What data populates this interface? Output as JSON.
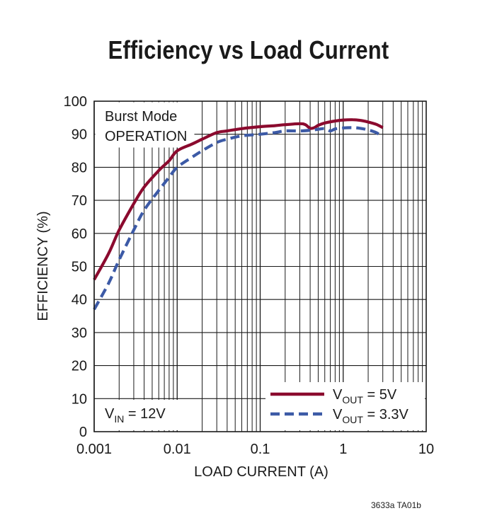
{
  "figure_id": "3633a TA01b",
  "chart_data": {
    "type": "line",
    "title": "Efficiency vs Load Current",
    "xlabel": "LOAD CURRENT (A)",
    "ylabel": "EFFICIENCY (%)",
    "xscale": "log",
    "xlim": [
      0.001,
      10
    ],
    "ylim": [
      0,
      100
    ],
    "grid": true,
    "x_tick_labels": [
      "0.001",
      "0.01",
      "0.1",
      "1",
      "10"
    ],
    "x_ticks": [
      0.001,
      0.01,
      0.1,
      1,
      10
    ],
    "y_ticks": [
      0,
      10,
      20,
      30,
      40,
      50,
      60,
      70,
      80,
      90,
      100
    ],
    "annotations": {
      "mode_line1": "Burst Mode",
      "mode_line2": "OPERATION",
      "vin_main": "V",
      "vin_sub": "IN",
      "vin_value": " = 12V"
    },
    "legend_position": "bottom-right",
    "series": [
      {
        "name": "VOUT = 5V",
        "legend_main": "V",
        "legend_sub": "OUT",
        "legend_value": " = 5V",
        "color": "#8b0a2e",
        "style": "solid",
        "x": [
          0.001,
          0.0015,
          0.002,
          0.003,
          0.004,
          0.006,
          0.008,
          0.01,
          0.015,
          0.02,
          0.03,
          0.04,
          0.06,
          0.1,
          0.15,
          0.2,
          0.3,
          0.35,
          0.4,
          0.45,
          0.5,
          0.6,
          0.8,
          1.0,
          1.3,
          1.6,
          2.0,
          2.5,
          3.0
        ],
        "values": [
          46,
          54,
          61,
          69,
          74,
          79,
          82,
          85,
          87,
          88.5,
          90.5,
          91,
          91.7,
          92.3,
          92.6,
          92.9,
          93.2,
          92.9,
          91.8,
          92.0,
          92.7,
          93.4,
          94.0,
          94.3,
          94.4,
          94.2,
          93.7,
          93.0,
          92.0
        ]
      },
      {
        "name": "VOUT = 3.3V",
        "legend_main": "V",
        "legend_sub": "OUT",
        "legend_value": " = 3.3V",
        "color": "#3c5aa6",
        "style": "dashed",
        "x": [
          0.001,
          0.0015,
          0.002,
          0.003,
          0.004,
          0.006,
          0.008,
          0.01,
          0.015,
          0.02,
          0.03,
          0.04,
          0.06,
          0.1,
          0.15,
          0.2,
          0.3,
          0.4,
          0.5,
          0.6,
          0.7,
          0.8,
          1.0,
          1.3,
          1.6,
          2.0,
          2.5,
          3.0
        ],
        "values": [
          37,
          45,
          52,
          61,
          67,
          73,
          77,
          80,
          83,
          85,
          87.5,
          88.5,
          89.5,
          90,
          90.5,
          91,
          91,
          91.2,
          91.5,
          91.7,
          91,
          91.6,
          91.9,
          92.0,
          91.8,
          91.3,
          90.5,
          89.2
        ]
      }
    ]
  }
}
